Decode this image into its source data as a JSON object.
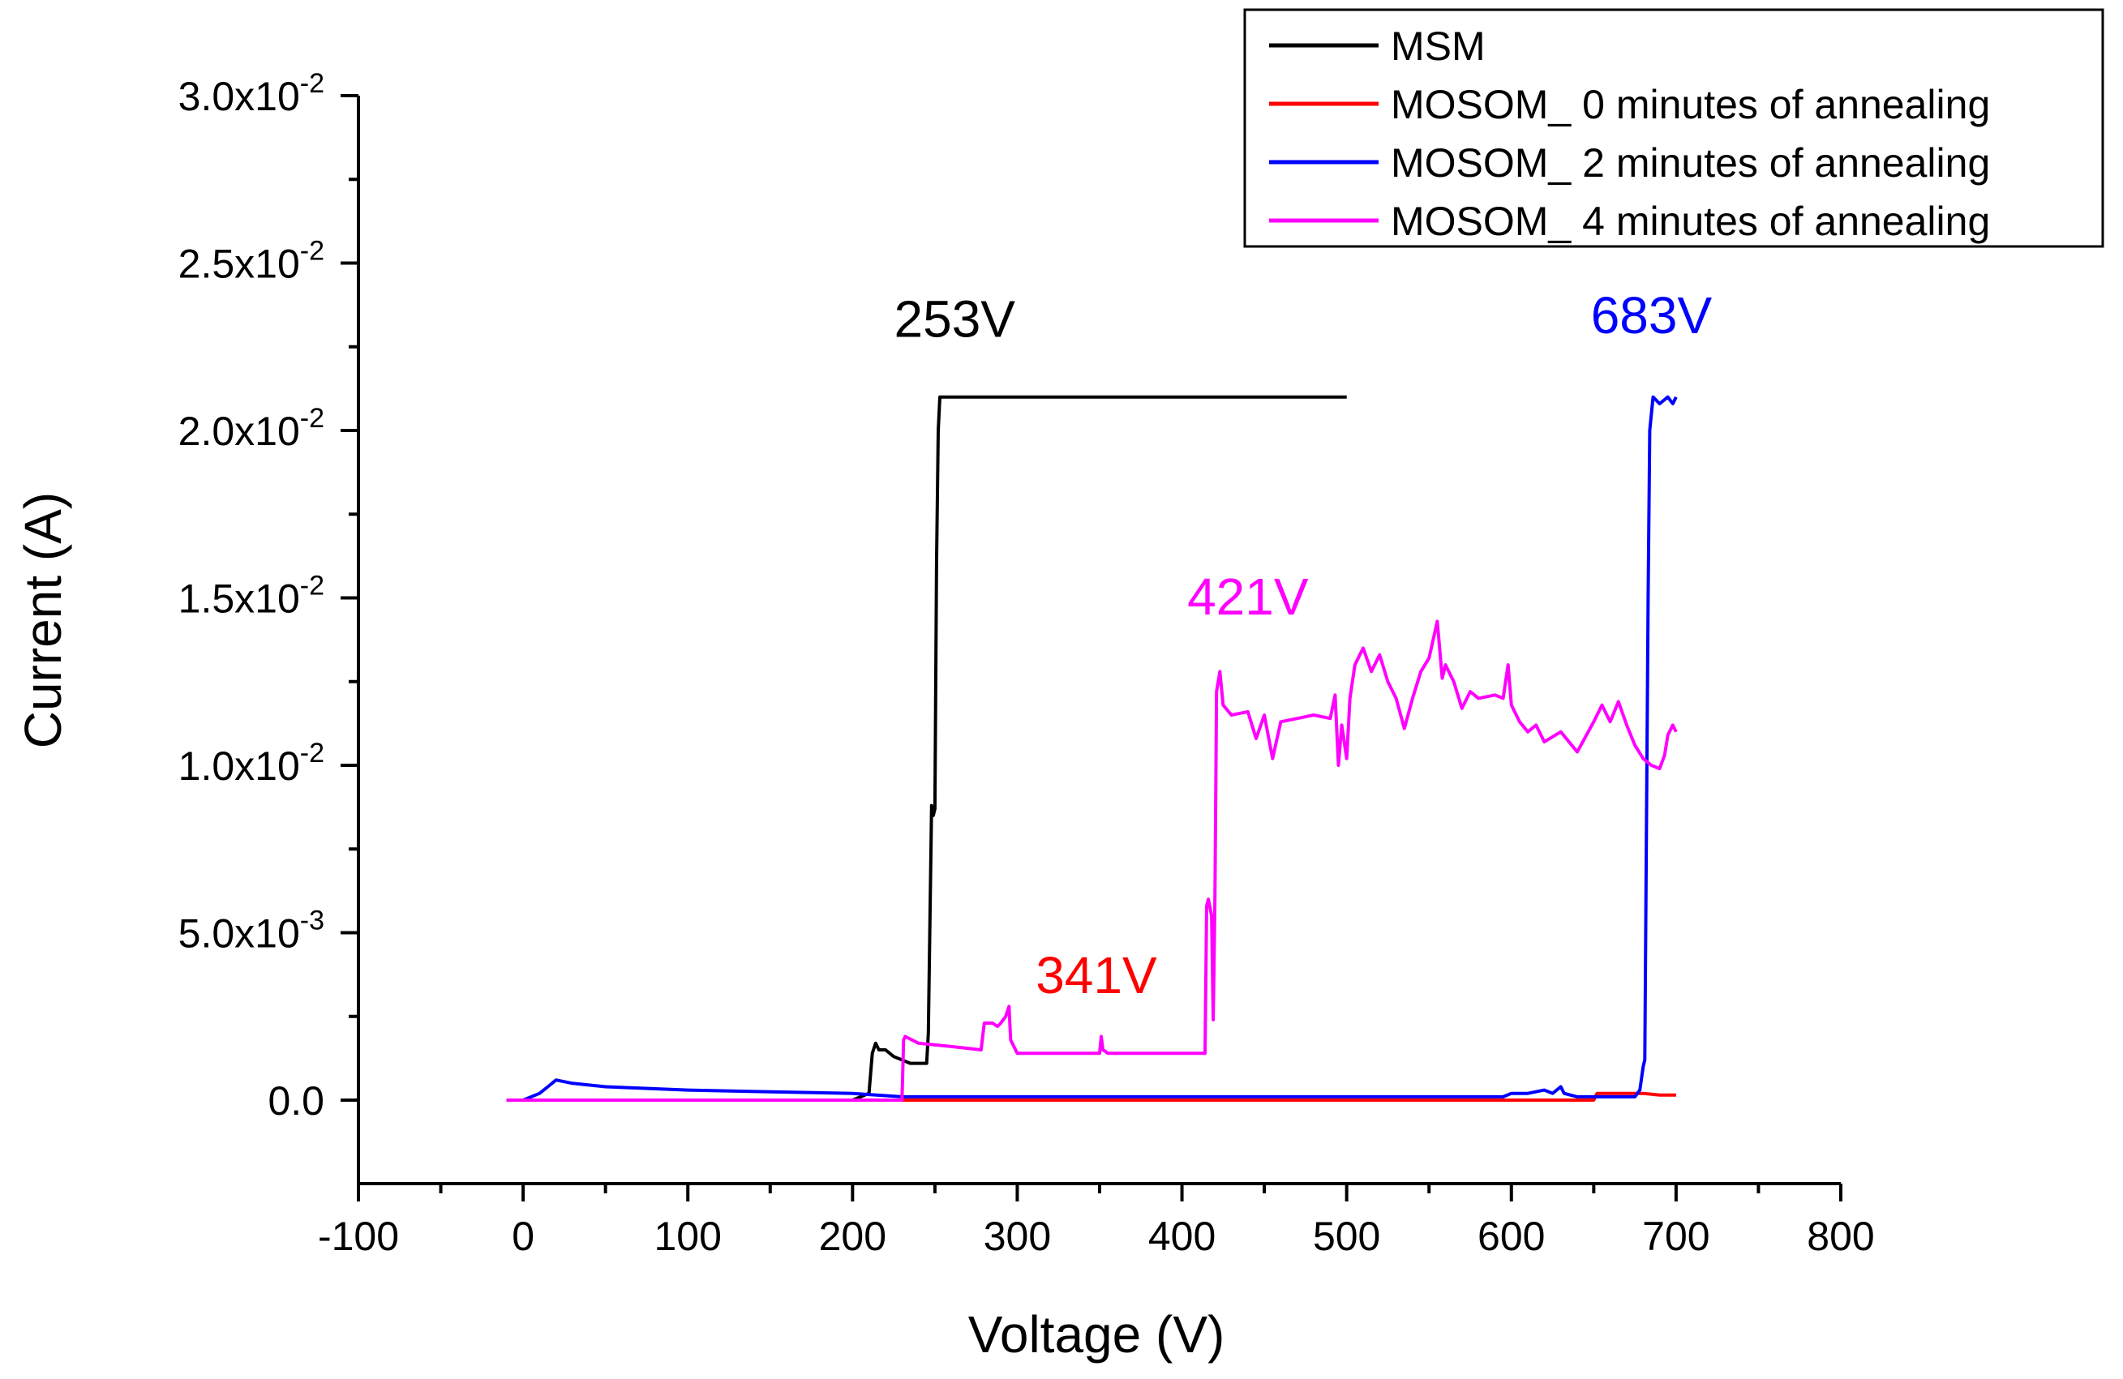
{
  "chart_data": {
    "type": "line",
    "xlabel": "Voltage (V)",
    "ylabel": "Current (A)",
    "xlim": [
      -100,
      800
    ],
    "ylim": [
      -0.0025,
      0.03
    ],
    "grid": false,
    "legend_position": "top-right",
    "x_ticks": [
      {
        "value": -100,
        "label": "-100"
      },
      {
        "value": 0,
        "label": "0"
      },
      {
        "value": 100,
        "label": "100"
      },
      {
        "value": 200,
        "label": "200"
      },
      {
        "value": 300,
        "label": "300"
      },
      {
        "value": 400,
        "label": "400"
      },
      {
        "value": 500,
        "label": "500"
      },
      {
        "value": 600,
        "label": "600"
      },
      {
        "value": 700,
        "label": "700"
      },
      {
        "value": 800,
        "label": "800"
      }
    ],
    "y_ticks": [
      {
        "value": 0.0,
        "mantissa": "0.0",
        "exponent": ""
      },
      {
        "value": 0.005,
        "mantissa": "5.0x10",
        "exponent": "-3"
      },
      {
        "value": 0.01,
        "mantissa": "1.0x10",
        "exponent": "-2"
      },
      {
        "value": 0.015,
        "mantissa": "1.5x10",
        "exponent": "-2"
      },
      {
        "value": 0.02,
        "mantissa": "2.0x10",
        "exponent": "-2"
      },
      {
        "value": 0.025,
        "mantissa": "2.5x10",
        "exponent": "-2"
      },
      {
        "value": 0.03,
        "mantissa": "3.0x10",
        "exponent": "-2"
      }
    ],
    "series": [
      {
        "name": "MSM",
        "color": "#000000",
        "x": [
          -10,
          100,
          200,
          210,
          212,
          214,
          216,
          220,
          225,
          230,
          235,
          240,
          245,
          246,
          248,
          249,
          250,
          251,
          252,
          253,
          253.5,
          300,
          400,
          450,
          500
        ],
        "y": [
          0.0,
          0.0,
          0.0,
          0.0002,
          0.0014,
          0.0017,
          0.0015,
          0.0015,
          0.0013,
          0.0012,
          0.0011,
          0.0011,
          0.0011,
          0.002,
          0.0088,
          0.0085,
          0.0087,
          0.016,
          0.02,
          0.021,
          0.021,
          0.021,
          0.021,
          0.021,
          0.021
        ]
      },
      {
        "name": "MOSOM_ 0 minutes of annealing",
        "color": "#ff0000",
        "x": [
          -10,
          100,
          200,
          300,
          400,
          500,
          600,
          650,
          652,
          660,
          670,
          680,
          690,
          700
        ],
        "y": [
          0.0,
          0.0,
          0.0,
          0.0,
          0.0,
          0.0,
          0.0,
          0.0,
          0.0002,
          0.0002,
          0.0002,
          0.0002,
          0.00015,
          0.00015
        ]
      },
      {
        "name": "MOSOM_ 2 minutes of annealing",
        "color": "#0000ff",
        "x": [
          -10,
          0,
          10,
          15,
          20,
          30,
          50,
          100,
          150,
          200,
          230,
          300,
          400,
          450,
          500,
          550,
          595,
          600,
          610,
          620,
          625,
          630,
          632,
          640,
          650,
          660,
          670,
          675,
          678,
          680,
          681,
          682,
          683,
          684,
          686,
          690,
          695,
          698,
          700
        ],
        "y": [
          0.0,
          0.0,
          0.0002,
          0.0004,
          0.0006,
          0.0005,
          0.0004,
          0.0003,
          0.00025,
          0.0002,
          0.0001,
          0.0001,
          0.0001,
          0.0001,
          0.0001,
          0.0001,
          0.0001,
          0.0002,
          0.0002,
          0.0003,
          0.0002,
          0.0004,
          0.0002,
          0.0001,
          0.0001,
          0.0001,
          0.0001,
          0.0001,
          0.0003,
          0.001,
          0.0012,
          0.008,
          0.015,
          0.02,
          0.021,
          0.0208,
          0.021,
          0.0208,
          0.021
        ]
      },
      {
        "name": "MOSOM_ 4 minutes of annealing",
        "color": "#ff00ff",
        "x": [
          -10,
          100,
          200,
          230,
          231,
          232,
          240,
          260,
          278,
          280,
          285,
          288,
          290,
          293,
          295,
          296,
          300,
          320,
          340,
          350,
          351,
          352,
          355,
          360,
          380,
          400,
          410,
          414,
          415,
          416,
          418,
          419,
          420,
          421,
          423,
          425,
          430,
          440,
          445,
          450,
          455,
          460,
          470,
          480,
          490,
          493,
          495,
          497,
          500,
          502,
          505,
          510,
          515,
          520,
          525,
          530,
          535,
          540,
          545,
          550,
          555,
          558,
          560,
          565,
          570,
          575,
          580,
          590,
          595,
          598,
          600,
          605,
          610,
          615,
          620,
          630,
          640,
          650,
          655,
          660,
          665,
          670,
          675,
          680,
          685,
          690,
          693,
          695,
          698,
          700
        ],
        "y": [
          0.0,
          0.0,
          0.0,
          0.0,
          0.0018,
          0.0019,
          0.0017,
          0.0016,
          0.0015,
          0.0023,
          0.0023,
          0.0022,
          0.0023,
          0.0025,
          0.0028,
          0.0018,
          0.0014,
          0.0014,
          0.0014,
          0.0014,
          0.0019,
          0.0015,
          0.0014,
          0.0014,
          0.0014,
          0.0014,
          0.0014,
          0.0014,
          0.0058,
          0.006,
          0.0055,
          0.0024,
          0.006,
          0.0122,
          0.0128,
          0.0118,
          0.0115,
          0.0116,
          0.0108,
          0.0115,
          0.0102,
          0.0113,
          0.0114,
          0.0115,
          0.0114,
          0.0121,
          0.01,
          0.0112,
          0.0102,
          0.012,
          0.013,
          0.0135,
          0.0128,
          0.0133,
          0.0125,
          0.012,
          0.0111,
          0.012,
          0.0128,
          0.0132,
          0.0143,
          0.0126,
          0.013,
          0.0125,
          0.0117,
          0.0122,
          0.012,
          0.0121,
          0.012,
          0.013,
          0.0118,
          0.0113,
          0.011,
          0.0112,
          0.0107,
          0.011,
          0.0104,
          0.0113,
          0.0118,
          0.0113,
          0.0119,
          0.0112,
          0.0106,
          0.0102,
          0.01,
          0.0099,
          0.0103,
          0.0109,
          0.0112,
          0.011
        ]
      }
    ],
    "annotations": [
      {
        "text": "253V",
        "x": 262,
        "y": 0.0228,
        "color": "#000000"
      },
      {
        "text": "341V",
        "x": 348,
        "y": 0.0032,
        "color": "#ff0000"
      },
      {
        "text": "421V",
        "x": 440,
        "y": 0.0145,
        "color": "#ff00ff"
      },
      {
        "text": "683V",
        "x": 685,
        "y": 0.0229,
        "color": "#0000ff"
      }
    ]
  }
}
